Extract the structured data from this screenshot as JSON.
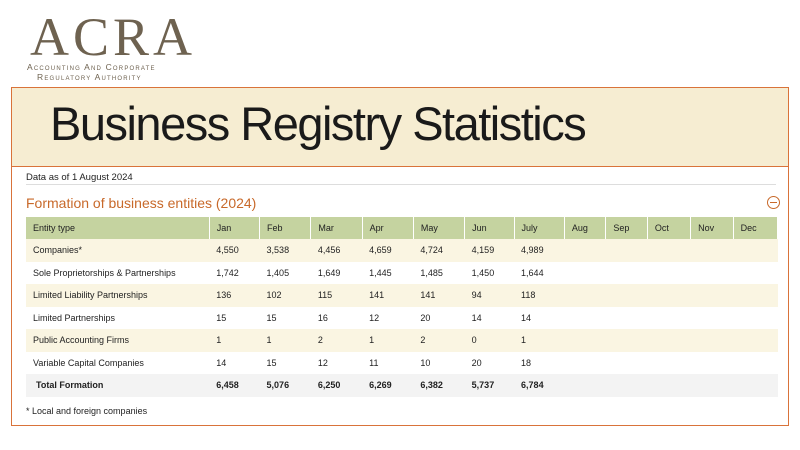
{
  "logo": {
    "name": "ACRA",
    "line1": "Accounting And Corporate",
    "line2": "Regulatory Authority"
  },
  "header": {
    "title": "Business Registry Statistics"
  },
  "data_as_of": "Data as of 1 August 2024",
  "section": {
    "title": "Formation of business entities (2024)"
  },
  "table": {
    "headers": [
      "Entity type",
      "Jan",
      "Feb",
      "Mar",
      "Apr",
      "May",
      "Jun",
      "July",
      "Aug",
      "Sep",
      "Oct",
      "Nov",
      "Dec"
    ],
    "rows": [
      [
        "Companies*",
        "4,550",
        "3,538",
        "4,456",
        "4,659",
        "4,724",
        "4,159",
        "4,989"
      ],
      [
        "Sole Proprietorships & Partnerships",
        "1,742",
        "1,405",
        "1,649",
        "1,445",
        "1,485",
        "1,450",
        "1,644"
      ],
      [
        "Limited Liability Partnerships",
        "136",
        "102",
        "115",
        "141",
        "141",
        "94",
        "118"
      ],
      [
        "Limited Partnerships",
        "15",
        "15",
        "16",
        "12",
        "20",
        "14",
        "14"
      ],
      [
        "Public Accounting Firms",
        "1",
        "1",
        "2",
        "1",
        "2",
        "0",
        "1"
      ],
      [
        "Variable Capital Companies",
        "14",
        "15",
        "12",
        "11",
        "10",
        "20",
        "18"
      ]
    ],
    "total": [
      "Total Formation",
      "6,458",
      "5,076",
      "6,250",
      "6,269",
      "6,382",
      "5,737",
      "6,784"
    ]
  },
  "footnote": "* Local and foreign companies"
}
